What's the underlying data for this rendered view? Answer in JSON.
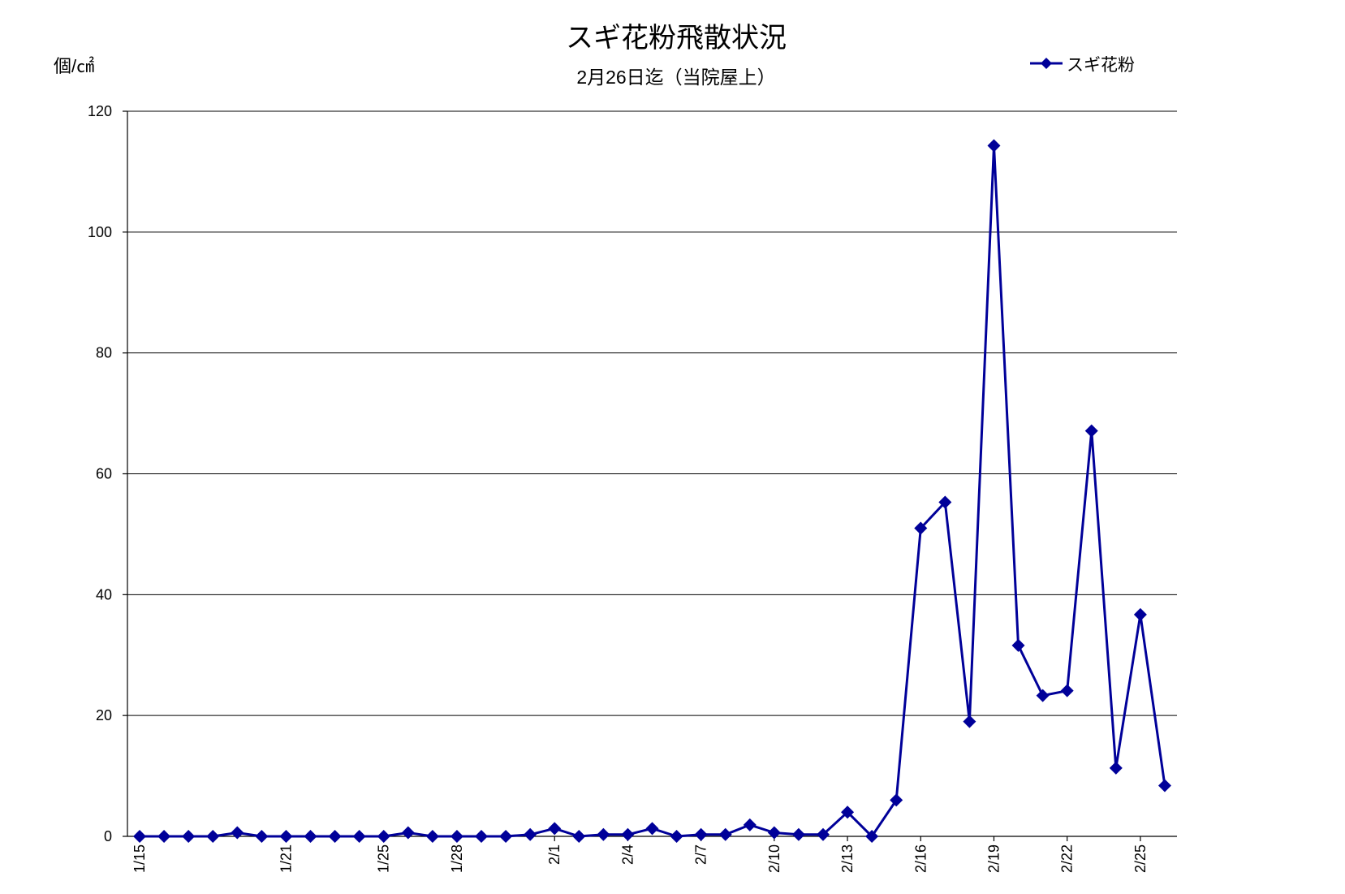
{
  "chart_data": {
    "type": "line",
    "title": "スギ花粉飛散状況",
    "subtitle": "2月26日迄（当院屋上）",
    "ylabel": "個/㎠",
    "xlabel": "",
    "ylim": [
      0,
      120
    ],
    "yticks": [
      0,
      20,
      40,
      60,
      80,
      100,
      120
    ],
    "grid": true,
    "legend": "top-right",
    "categories": [
      "1/15",
      "",
      "",
      "",
      "",
      "",
      "1/21",
      "",
      "",
      "",
      "1/25",
      "",
      "",
      "1/28",
      "",
      "",
      "",
      "2/1",
      "",
      "",
      "2/4",
      "",
      "",
      "2/7",
      "",
      "",
      "2/10",
      "",
      "",
      "2/13",
      "",
      "",
      "2/16",
      "",
      "",
      "2/19",
      "",
      "",
      "2/22",
      "",
      "",
      "2/25",
      ""
    ],
    "series": [
      {
        "name": "スギ花粉",
        "color": "#000099",
        "marker": "diamond",
        "values": [
          0,
          0,
          0,
          0,
          0.6,
          0,
          0,
          0,
          0,
          0,
          0,
          0.6,
          0,
          0,
          0,
          0,
          0.3,
          1.3,
          0,
          0.3,
          0.3,
          1.3,
          0,
          0.3,
          0.3,
          1.9,
          0.6,
          0.3,
          0.3,
          4.0,
          0,
          6.0,
          51.0,
          55.3,
          19.0,
          114.3,
          31.6,
          23.3,
          24.1,
          67.1,
          11.3,
          36.7,
          8.4
        ]
      }
    ]
  }
}
